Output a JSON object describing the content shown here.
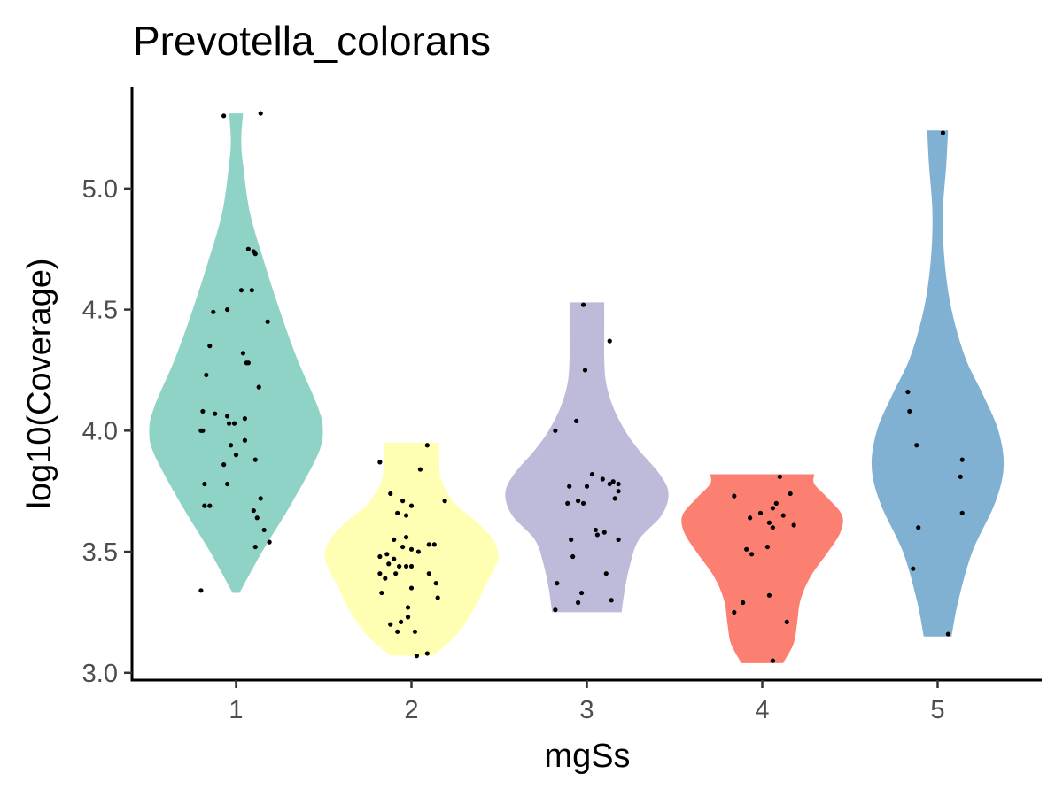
{
  "chart_data": {
    "type": "violin",
    "title": "Prevotella_colorans",
    "xlabel": "mgSs",
    "ylabel": "log10(Coverage)",
    "categories": [
      "1",
      "2",
      "3",
      "4",
      "5"
    ],
    "ylim": [
      2.97,
      5.42
    ],
    "yticks": [
      3.0,
      3.5,
      4.0,
      4.5,
      5.0
    ],
    "ytick_labels": [
      "3.0",
      "3.5",
      "4.0",
      "4.5",
      "5.0"
    ],
    "grid": false,
    "legend": "none",
    "groups": [
      {
        "category": "1",
        "color": "#8fd3c7",
        "range": [
          3.33,
          5.31
        ],
        "density": [
          [
            3.33,
            0.02
          ],
          [
            3.5,
            0.15
          ],
          [
            3.7,
            0.32
          ],
          [
            3.9,
            0.47
          ],
          [
            4.0,
            0.5
          ],
          [
            4.1,
            0.47
          ],
          [
            4.3,
            0.35
          ],
          [
            4.5,
            0.25
          ],
          [
            4.7,
            0.16
          ],
          [
            4.9,
            0.08
          ],
          [
            5.1,
            0.04
          ],
          [
            5.2,
            0.03
          ],
          [
            5.31,
            0.04
          ]
        ],
        "points": [
          [
            -0.2,
            3.34
          ],
          [
            0.11,
            3.52
          ],
          [
            0.19,
            3.54
          ],
          [
            0.16,
            3.59
          ],
          [
            0.12,
            3.64
          ],
          [
            0.1,
            3.67
          ],
          [
            -0.15,
            3.69
          ],
          [
            -0.18,
            3.69
          ],
          [
            0.14,
            3.72
          ],
          [
            -0.18,
            3.78
          ],
          [
            -0.05,
            3.78
          ],
          [
            -0.07,
            3.86
          ],
          [
            0.0,
            3.9
          ],
          [
            0.11,
            3.88
          ],
          [
            -0.03,
            3.94
          ],
          [
            0.05,
            3.96
          ],
          [
            -0.2,
            4.0
          ],
          [
            -0.19,
            4.0
          ],
          [
            -0.04,
            4.03
          ],
          [
            -0.01,
            4.03
          ],
          [
            -0.05,
            4.06
          ],
          [
            -0.12,
            4.07
          ],
          [
            -0.19,
            4.08
          ],
          [
            0.05,
            4.05
          ],
          [
            0.13,
            4.18
          ],
          [
            -0.17,
            4.23
          ],
          [
            0.06,
            4.28
          ],
          [
            0.07,
            4.28
          ],
          [
            0.04,
            4.32
          ],
          [
            -0.15,
            4.35
          ],
          [
            -0.13,
            4.49
          ],
          [
            -0.05,
            4.5
          ],
          [
            0.18,
            4.45
          ],
          [
            0.03,
            4.58
          ],
          [
            0.09,
            4.58
          ],
          [
            0.07,
            4.75
          ],
          [
            0.1,
            4.74
          ],
          [
            0.11,
            4.73
          ],
          [
            -0.07,
            5.3
          ],
          [
            0.14,
            5.31
          ]
        ]
      },
      {
        "category": "2",
        "color": "#ffffb3",
        "range": [
          3.07,
          3.95
        ],
        "density": [
          [
            3.07,
            0.12
          ],
          [
            3.15,
            0.25
          ],
          [
            3.25,
            0.35
          ],
          [
            3.35,
            0.42
          ],
          [
            3.42,
            0.47
          ],
          [
            3.48,
            0.5
          ],
          [
            3.55,
            0.47
          ],
          [
            3.62,
            0.38
          ],
          [
            3.7,
            0.25
          ],
          [
            3.8,
            0.17
          ],
          [
            3.9,
            0.16
          ],
          [
            3.95,
            0.16
          ]
        ],
        "points": [
          [
            -0.18,
            3.87
          ],
          [
            -0.12,
            3.74
          ],
          [
            0.05,
            3.84
          ],
          [
            0.09,
            3.94
          ],
          [
            -0.05,
            3.71
          ],
          [
            0.0,
            3.69
          ],
          [
            0.19,
            3.71
          ],
          [
            -0.08,
            3.66
          ],
          [
            -0.03,
            3.65
          ],
          [
            -0.1,
            3.55
          ],
          [
            -0.03,
            3.56
          ],
          [
            0.1,
            3.53
          ],
          [
            0.13,
            3.53
          ],
          [
            0.04,
            3.5
          ],
          [
            0.0,
            3.51
          ],
          [
            -0.05,
            3.52
          ],
          [
            -0.18,
            3.48
          ],
          [
            -0.14,
            3.49
          ],
          [
            -0.1,
            3.47
          ],
          [
            -0.13,
            3.45
          ],
          [
            -0.07,
            3.44
          ],
          [
            -0.03,
            3.44
          ],
          [
            0.0,
            3.44
          ],
          [
            -0.18,
            3.41
          ],
          [
            -0.15,
            3.39
          ],
          [
            -0.09,
            3.41
          ],
          [
            0.1,
            3.41
          ],
          [
            0.0,
            3.35
          ],
          [
            0.14,
            3.37
          ],
          [
            -0.17,
            3.33
          ],
          [
            0.15,
            3.31
          ],
          [
            -0.02,
            3.27
          ],
          [
            -0.12,
            3.2
          ],
          [
            -0.06,
            3.21
          ],
          [
            -0.02,
            3.23
          ],
          [
            -0.08,
            3.17
          ],
          [
            0.02,
            3.17
          ],
          [
            0.09,
            3.08
          ],
          [
            0.03,
            3.07
          ]
        ]
      },
      {
        "category": "3",
        "color": "#bebada",
        "range": [
          3.25,
          4.53
        ],
        "density": [
          [
            3.25,
            0.2
          ],
          [
            3.35,
            0.22
          ],
          [
            3.45,
            0.25
          ],
          [
            3.55,
            0.3
          ],
          [
            3.65,
            0.43
          ],
          [
            3.74,
            0.47
          ],
          [
            3.82,
            0.42
          ],
          [
            3.92,
            0.3
          ],
          [
            4.0,
            0.22
          ],
          [
            4.1,
            0.15
          ],
          [
            4.2,
            0.11
          ],
          [
            4.3,
            0.1
          ],
          [
            4.4,
            0.1
          ],
          [
            4.53,
            0.1
          ]
        ],
        "points": [
          [
            -0.18,
            4.0
          ],
          [
            -0.06,
            4.04
          ],
          [
            -0.02,
            4.52
          ],
          [
            0.13,
            4.37
          ],
          [
            -0.01,
            4.25
          ],
          [
            0.03,
            3.82
          ],
          [
            0.09,
            3.8
          ],
          [
            0.15,
            3.79
          ],
          [
            0.13,
            3.78
          ],
          [
            0.18,
            3.78
          ],
          [
            -0.1,
            3.77
          ],
          [
            0.0,
            3.77
          ],
          [
            0.18,
            3.75
          ],
          [
            0.16,
            3.72
          ],
          [
            -0.05,
            3.71
          ],
          [
            -0.02,
            3.7
          ],
          [
            -0.11,
            3.7
          ],
          [
            0.1,
            3.58
          ],
          [
            0.05,
            3.59
          ],
          [
            0.06,
            3.57
          ],
          [
            -0.09,
            3.55
          ],
          [
            0.18,
            3.55
          ],
          [
            -0.08,
            3.48
          ],
          [
            0.11,
            3.41
          ],
          [
            -0.17,
            3.37
          ],
          [
            -0.03,
            3.33
          ],
          [
            -0.05,
            3.29
          ],
          [
            0.14,
            3.3
          ],
          [
            -0.18,
            3.26
          ]
        ]
      },
      {
        "category": "4",
        "color": "#fb8072",
        "range": [
          3.04,
          3.82
        ],
        "density": [
          [
            3.04,
            0.12
          ],
          [
            3.12,
            0.18
          ],
          [
            3.2,
            0.2
          ],
          [
            3.3,
            0.22
          ],
          [
            3.4,
            0.28
          ],
          [
            3.5,
            0.38
          ],
          [
            3.58,
            0.45
          ],
          [
            3.65,
            0.46
          ],
          [
            3.72,
            0.38
          ],
          [
            3.78,
            0.3
          ],
          [
            3.82,
            0.3
          ]
        ],
        "points": [
          [
            0.1,
            3.81
          ],
          [
            -0.16,
            3.73
          ],
          [
            0.16,
            3.74
          ],
          [
            0.08,
            3.7
          ],
          [
            0.06,
            3.68
          ],
          [
            0.12,
            3.65
          ],
          [
            -0.01,
            3.66
          ],
          [
            0.04,
            3.62
          ],
          [
            -0.07,
            3.64
          ],
          [
            0.06,
            3.6
          ],
          [
            0.18,
            3.61
          ],
          [
            0.03,
            3.52
          ],
          [
            -0.09,
            3.51
          ],
          [
            -0.06,
            3.49
          ],
          [
            0.04,
            3.32
          ],
          [
            -0.11,
            3.29
          ],
          [
            -0.16,
            3.25
          ],
          [
            0.14,
            3.21
          ],
          [
            0.06,
            3.05
          ]
        ]
      },
      {
        "category": "5",
        "color": "#80b1d3",
        "range": [
          3.15,
          5.24
        ],
        "density": [
          [
            3.15,
            0.08
          ],
          [
            3.3,
            0.12
          ],
          [
            3.5,
            0.2
          ],
          [
            3.7,
            0.33
          ],
          [
            3.85,
            0.38
          ],
          [
            4.0,
            0.35
          ],
          [
            4.15,
            0.26
          ],
          [
            4.3,
            0.16
          ],
          [
            4.5,
            0.08
          ],
          [
            4.7,
            0.04
          ],
          [
            4.9,
            0.03
          ],
          [
            5.1,
            0.05
          ],
          [
            5.24,
            0.06
          ]
        ],
        "points": [
          [
            0.03,
            5.23
          ],
          [
            -0.17,
            4.16
          ],
          [
            -0.16,
            4.08
          ],
          [
            -0.12,
            3.94
          ],
          [
            0.14,
            3.88
          ],
          [
            0.13,
            3.81
          ],
          [
            -0.11,
            3.6
          ],
          [
            0.14,
            3.66
          ],
          [
            -0.14,
            3.43
          ],
          [
            0.06,
            3.16
          ]
        ]
      }
    ]
  }
}
